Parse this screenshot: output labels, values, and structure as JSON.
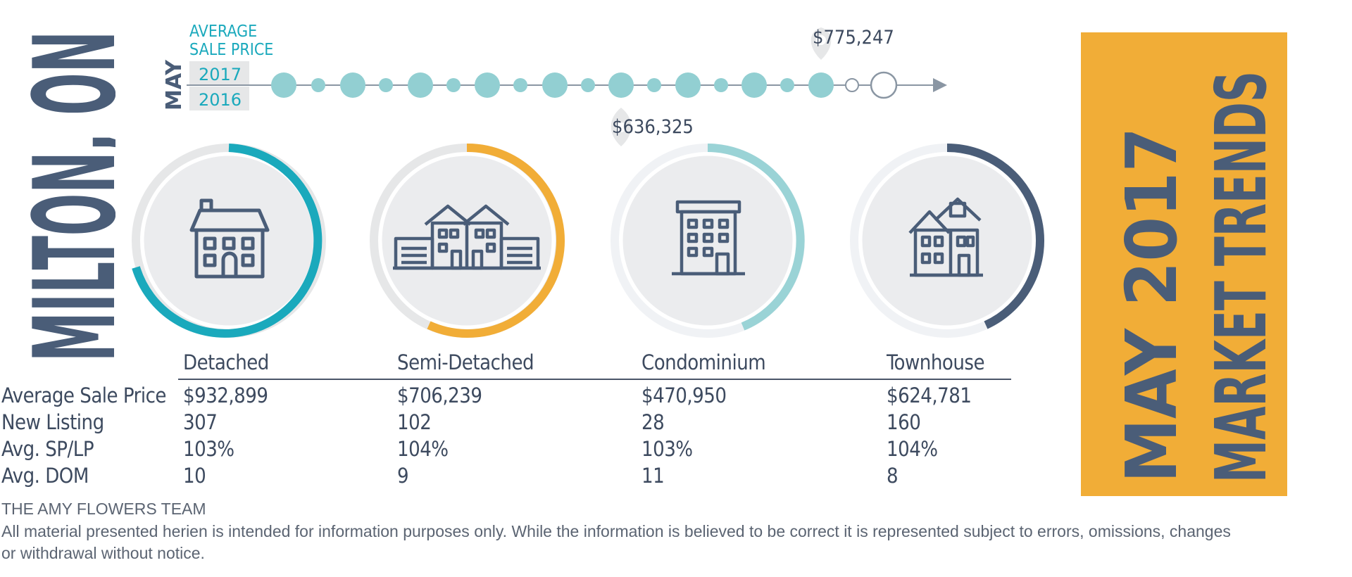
{
  "city": "MILTON, ON",
  "banner": {
    "line1": "MAY 2017",
    "line2": "MARKET TRENDS"
  },
  "timeline": {
    "month": "MAY",
    "title_line1": "AVERAGE",
    "title_line2": "SALE PRICE",
    "year_current": "2017",
    "year_previous": "2016",
    "callout_2017": "$775,247",
    "callout_2016": "$636,325"
  },
  "colors": {
    "navy": "#4a5d78",
    "teal": "#1aa9bc",
    "gold": "#f1ad37",
    "light_teal": "#9ad3d6",
    "dot": "#92cfd2"
  },
  "columns": [
    {
      "label": "Detached",
      "icon": "detached-house-icon"
    },
    {
      "label": "Semi-Detached",
      "icon": "semi-detached-house-icon"
    },
    {
      "label": "Condominium",
      "icon": "condominium-icon"
    },
    {
      "label": "Townhouse",
      "icon": "townhouse-icon"
    }
  ],
  "rows": [
    {
      "label": "Average Sale Price",
      "values": [
        "$932,899",
        "$706,239",
        "$470,950",
        "$624,781"
      ]
    },
    {
      "label": "New Listing",
      "values": [
        "307",
        "102",
        "28",
        "160"
      ]
    },
    {
      "label": "Avg. SP/LP",
      "values": [
        "103%",
        "104%",
        "103%",
        "104%"
      ]
    },
    {
      "label": "Avg. DOM",
      "values": [
        "10",
        "9",
        "11",
        "8"
      ]
    }
  ],
  "footer": {
    "team": "THE AMY FLOWERS TEAM",
    "disclaimer": "All material presented herien is intended for information purposes only. While the information is believed to be correct it is represented subject to errors, omissions, changes or withdrawal without notice."
  }
}
